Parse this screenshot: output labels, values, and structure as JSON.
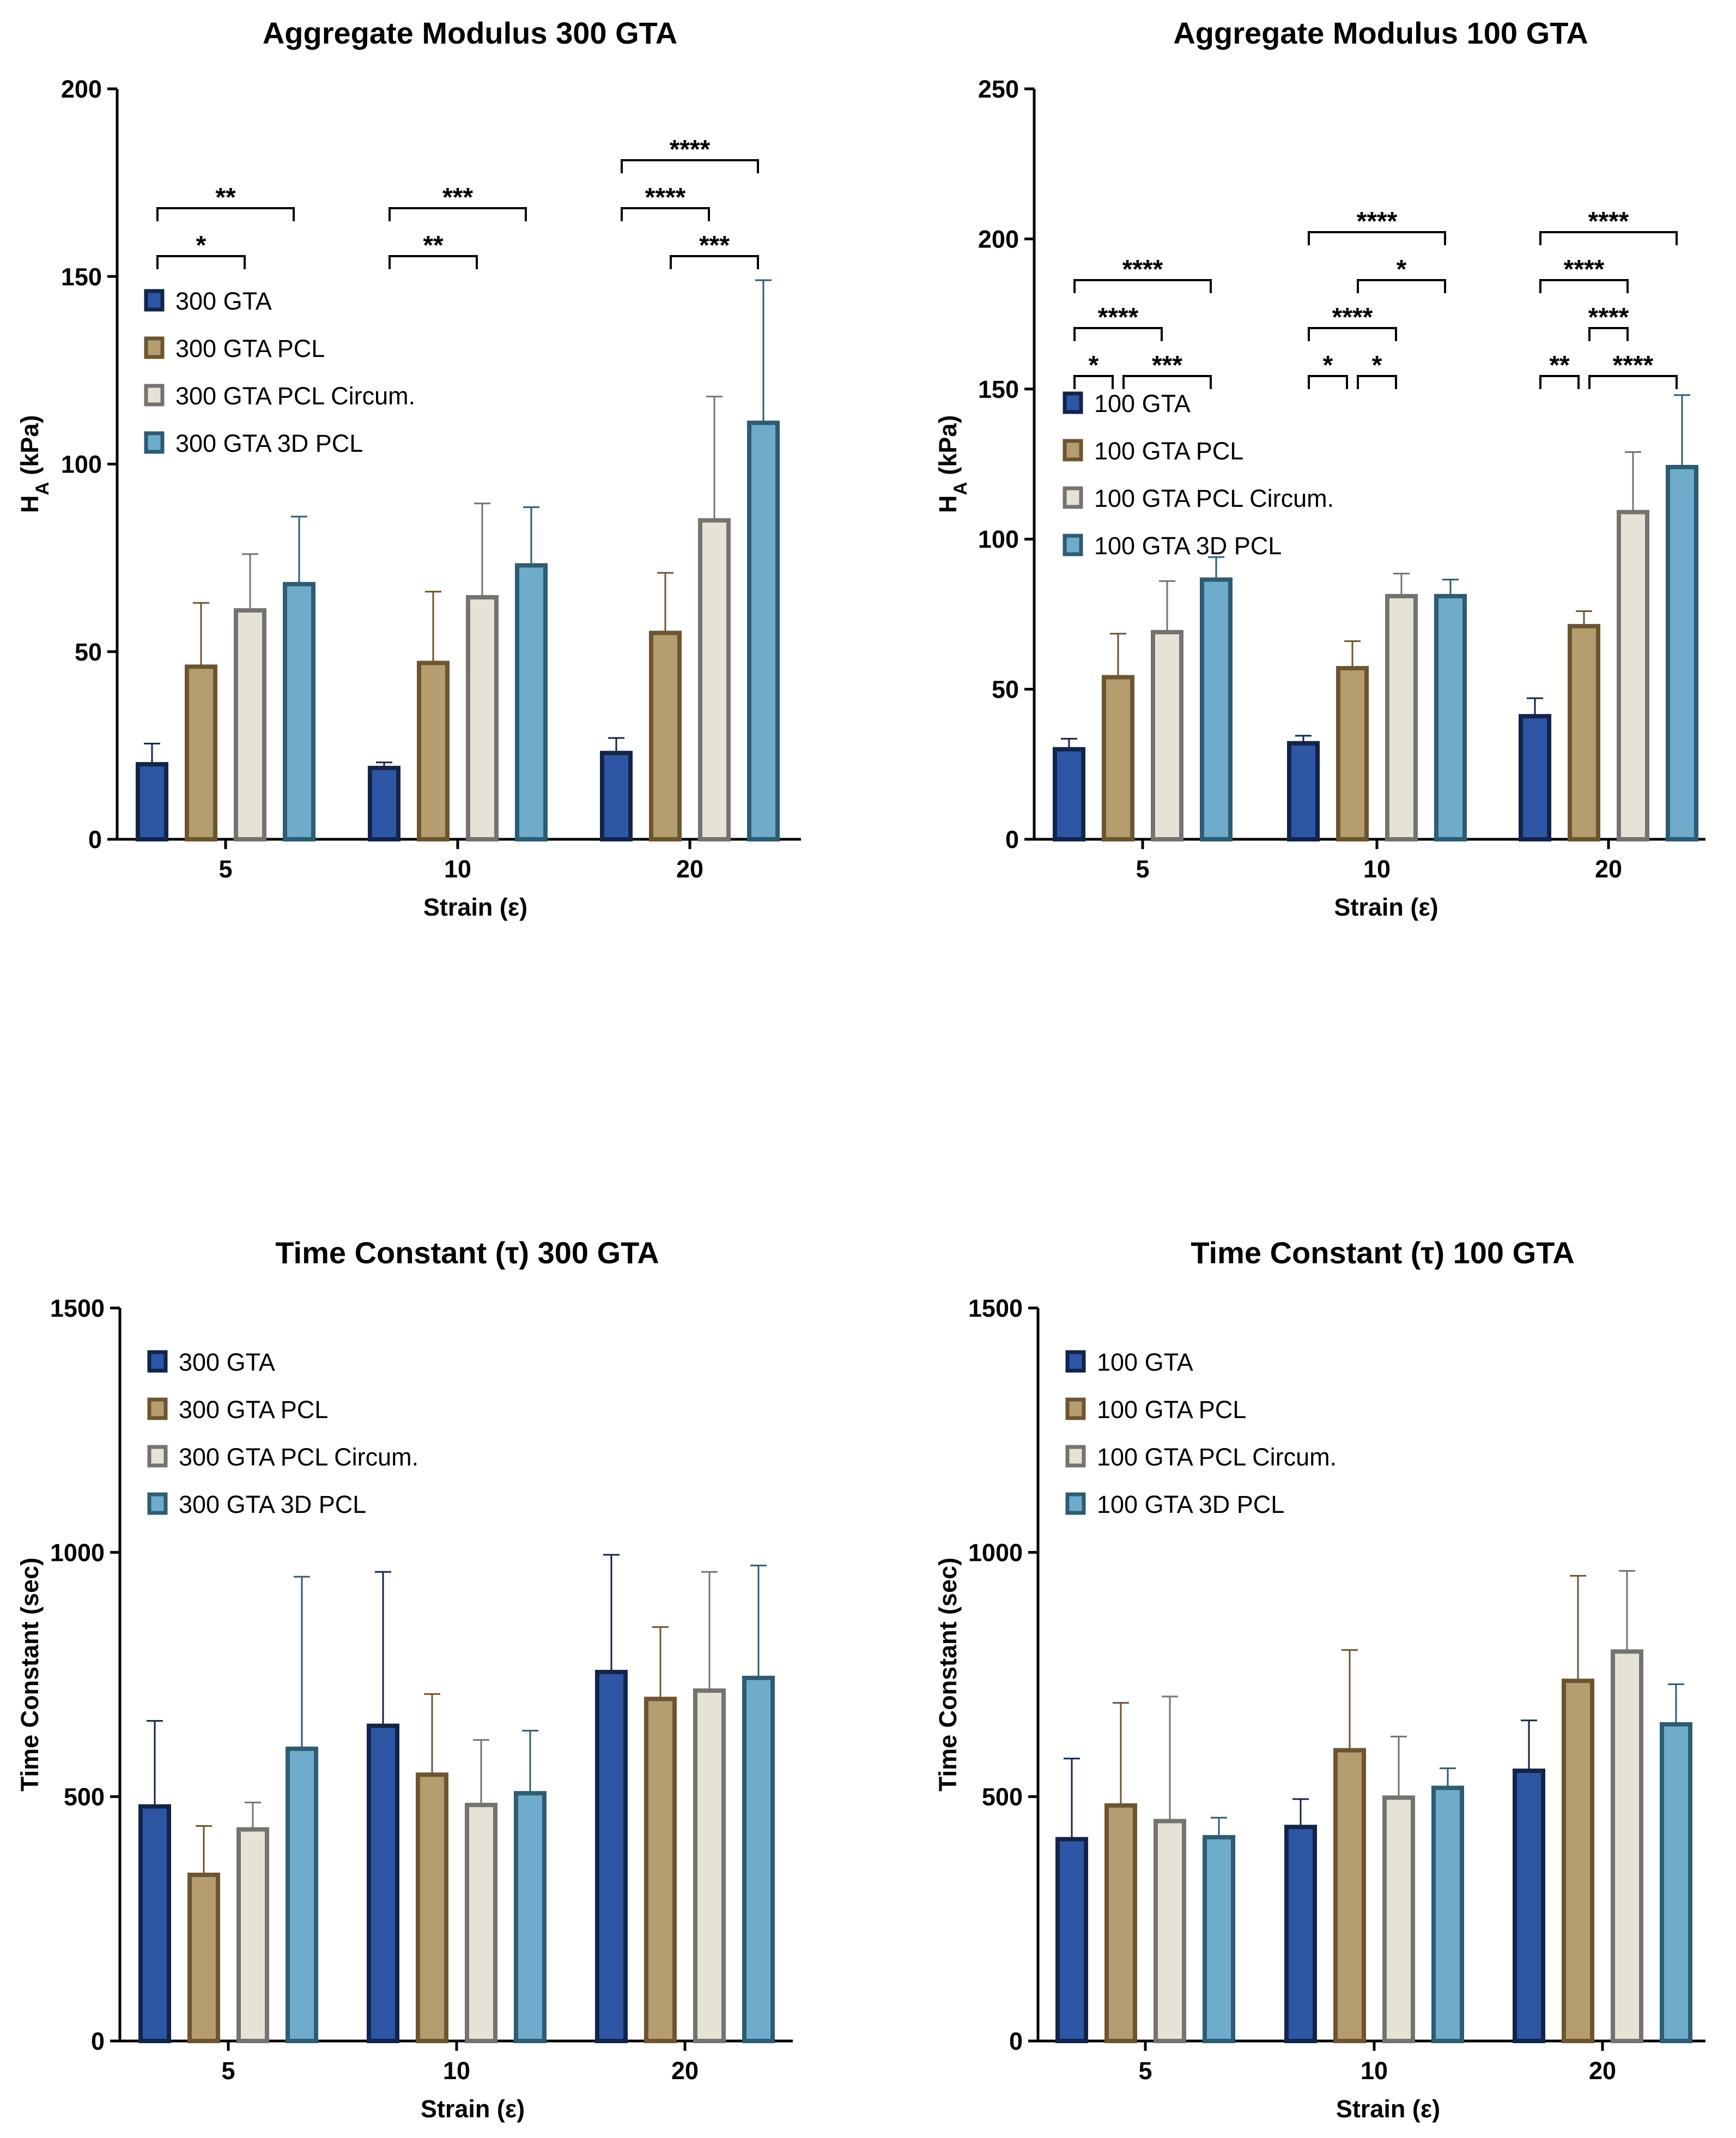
{
  "colors": {
    "300 GTA": {
      "fill": "#2d56a5",
      "stroke": "#13244a"
    },
    "300 GTA PCL": {
      "fill": "#b49d6e",
      "stroke": "#6d5530"
    },
    "300 GTA PCL Circum.": {
      "fill": "#e6e2d6",
      "stroke": "#757370"
    },
    "300 GTA 3D PCL": {
      "fill": "#6faccb",
      "stroke": "#2d5c73"
    },
    "100 GTA": {
      "fill": "#2d56a5",
      "stroke": "#13244a"
    },
    "100 GTA PCL": {
      "fill": "#b49d6e",
      "stroke": "#6d5530"
    },
    "100 GTA PCL Circum.": {
      "fill": "#e6e2d6",
      "stroke": "#757370"
    },
    "100 GTA 3D PCL": {
      "fill": "#6faccb",
      "stroke": "#2d5c73"
    }
  },
  "chart_data": [
    {
      "type": "bar",
      "title": "Aggregate Modulus 300 GTA",
      "xlabel": "Strain (ε)",
      "ylabel": "H_A (kPa)",
      "ylabel_main": "H",
      "ylabel_sub": "A",
      "ylabel_tail": " (kPa)",
      "ylim": [
        0,
        200
      ],
      "yticks": [
        0,
        50,
        100,
        150,
        200
      ],
      "legend_position": "top-left",
      "categories": [
        "5",
        "10",
        "20"
      ],
      "series": [
        {
          "name": "300 GTA",
          "values": [
            20,
            19,
            23
          ],
          "errors": [
            5.5,
            1.5,
            4
          ]
        },
        {
          "name": "300 GTA PCL",
          "values": [
            46,
            47,
            55
          ],
          "errors": [
            17,
            19,
            16
          ]
        },
        {
          "name": "300 GTA PCL Circum.",
          "values": [
            61,
            64.5,
            85
          ],
          "errors": [
            15,
            25,
            33
          ]
        },
        {
          "name": "300 GTA 3D PCL",
          "values": [
            68,
            73,
            111
          ],
          "errors": [
            18,
            15.5,
            38
          ]
        }
      ],
      "significance": [
        {
          "category": 0,
          "from": 0,
          "to": 2,
          "level": 1,
          "label": "*"
        },
        {
          "category": 0,
          "from": 0,
          "to": 3,
          "level": 2,
          "label": "**"
        },
        {
          "category": 1,
          "from": 0,
          "to": 2,
          "level": 1,
          "label": "**"
        },
        {
          "category": 1,
          "from": 0,
          "to": 3,
          "level": 2,
          "label": "***"
        },
        {
          "category": 2,
          "from": 1,
          "to": 3,
          "level": 1,
          "label": "***"
        },
        {
          "category": 2,
          "from": 0,
          "to": 2,
          "level": 2,
          "label": "****"
        },
        {
          "category": 2,
          "from": 0,
          "to": 3,
          "level": 3,
          "label": "****"
        }
      ]
    },
    {
      "type": "bar",
      "title": "Aggregate Modulus 100 GTA",
      "xlabel": "Strain (ε)",
      "ylabel": "H_A (kPa)",
      "ylabel_main": "H",
      "ylabel_sub": "A",
      "ylabel_tail": " (kPa)",
      "ylim": [
        0,
        250
      ],
      "yticks": [
        0,
        50,
        100,
        150,
        200,
        250
      ],
      "legend_position": "middle-left",
      "categories": [
        "5",
        "10",
        "20"
      ],
      "series": [
        {
          "name": "100 GTA",
          "values": [
            30,
            32,
            41
          ],
          "errors": [
            3.5,
            2.5,
            6
          ]
        },
        {
          "name": "100 GTA PCL",
          "values": [
            54,
            57,
            71
          ],
          "errors": [
            14.5,
            9,
            5
          ]
        },
        {
          "name": "100 GTA PCL Circum.",
          "values": [
            69,
            81,
            109
          ],
          "errors": [
            17,
            7.5,
            20
          ]
        },
        {
          "name": "100 GTA 3D PCL",
          "values": [
            86.5,
            81,
            124
          ],
          "errors": [
            7.5,
            5.5,
            24
          ]
        }
      ],
      "significance": [
        {
          "category": 0,
          "from": 0,
          "to": 1,
          "level": 1,
          "label": "*"
        },
        {
          "category": 0,
          "from": 1,
          "to": 3,
          "level": 1,
          "label": "***"
        },
        {
          "category": 0,
          "from": 0,
          "to": 2,
          "level": 2,
          "label": "****"
        },
        {
          "category": 0,
          "from": 0,
          "to": 3,
          "level": 3,
          "label": "****"
        },
        {
          "category": 1,
          "from": 0,
          "to": 1,
          "level": 1,
          "label": "*"
        },
        {
          "category": 1,
          "from": 1,
          "to": 2,
          "level": 1,
          "label": "*"
        },
        {
          "category": 1,
          "from": 0,
          "to": 2,
          "level": 2,
          "label": "****"
        },
        {
          "category": 1,
          "from": 1,
          "to": 3,
          "level": 3,
          "label": "*"
        },
        {
          "category": 1,
          "from": 0,
          "to": 3,
          "level": 4,
          "label": "****"
        },
        {
          "category": 2,
          "from": 0,
          "to": 1,
          "level": 1,
          "label": "**"
        },
        {
          "category": 2,
          "from": 1,
          "to": 3,
          "level": 1,
          "label": "****"
        },
        {
          "category": 2,
          "from": 1,
          "to": 2,
          "level": 2,
          "label": "****"
        },
        {
          "category": 2,
          "from": 0,
          "to": 2,
          "level": 3,
          "label": "****"
        },
        {
          "category": 2,
          "from": 0,
          "to": 3,
          "level": 4,
          "label": "****"
        }
      ]
    },
    {
      "type": "bar",
      "title": "Time Constant (τ) 300 GTA",
      "xlabel": "Strain (ε)",
      "ylabel": "Time Constant (sec)",
      "ylim": [
        0,
        1500
      ],
      "yticks": [
        0,
        500,
        1000,
        1500
      ],
      "legend_position": "top-left",
      "categories": [
        "5",
        "10",
        "20"
      ],
      "series": [
        {
          "name": "300 GTA",
          "values": [
            480,
            645,
            755
          ],
          "errors": [
            175,
            315,
            240
          ]
        },
        {
          "name": "300 GTA PCL",
          "values": [
            340,
            545,
            700
          ],
          "errors": [
            100,
            165,
            147
          ]
        },
        {
          "name": "300 GTA PCL Circum.",
          "values": [
            433,
            483,
            717
          ],
          "errors": [
            55,
            133,
            243
          ]
        },
        {
          "name": "300 GTA 3D PCL",
          "values": [
            598,
            507,
            743
          ],
          "errors": [
            352,
            128,
            230
          ]
        }
      ]
    },
    {
      "type": "bar",
      "title": "Time Constant (τ) 100 GTA",
      "xlabel": "Strain (ε)",
      "ylabel": "Time Constant (sec)",
      "ylim": [
        0,
        1500
      ],
      "yticks": [
        0,
        500,
        1000,
        1500
      ],
      "legend_position": "top-left",
      "categories": [
        "5",
        "10",
        "20"
      ],
      "series": [
        {
          "name": "100 GTA",
          "values": [
            413,
            438,
            553
          ],
          "errors": [
            165,
            57,
            103
          ]
        },
        {
          "name": "100 GTA PCL",
          "values": [
            482,
            595,
            737
          ],
          "errors": [
            210,
            205,
            215
          ]
        },
        {
          "name": "100 GTA PCL Circum.",
          "values": [
            450,
            498,
            797
          ],
          "errors": [
            255,
            125,
            165
          ]
        },
        {
          "name": "100 GTA 3D PCL",
          "values": [
            417,
            518,
            648
          ],
          "errors": [
            40,
            40,
            82
          ]
        }
      ]
    }
  ]
}
